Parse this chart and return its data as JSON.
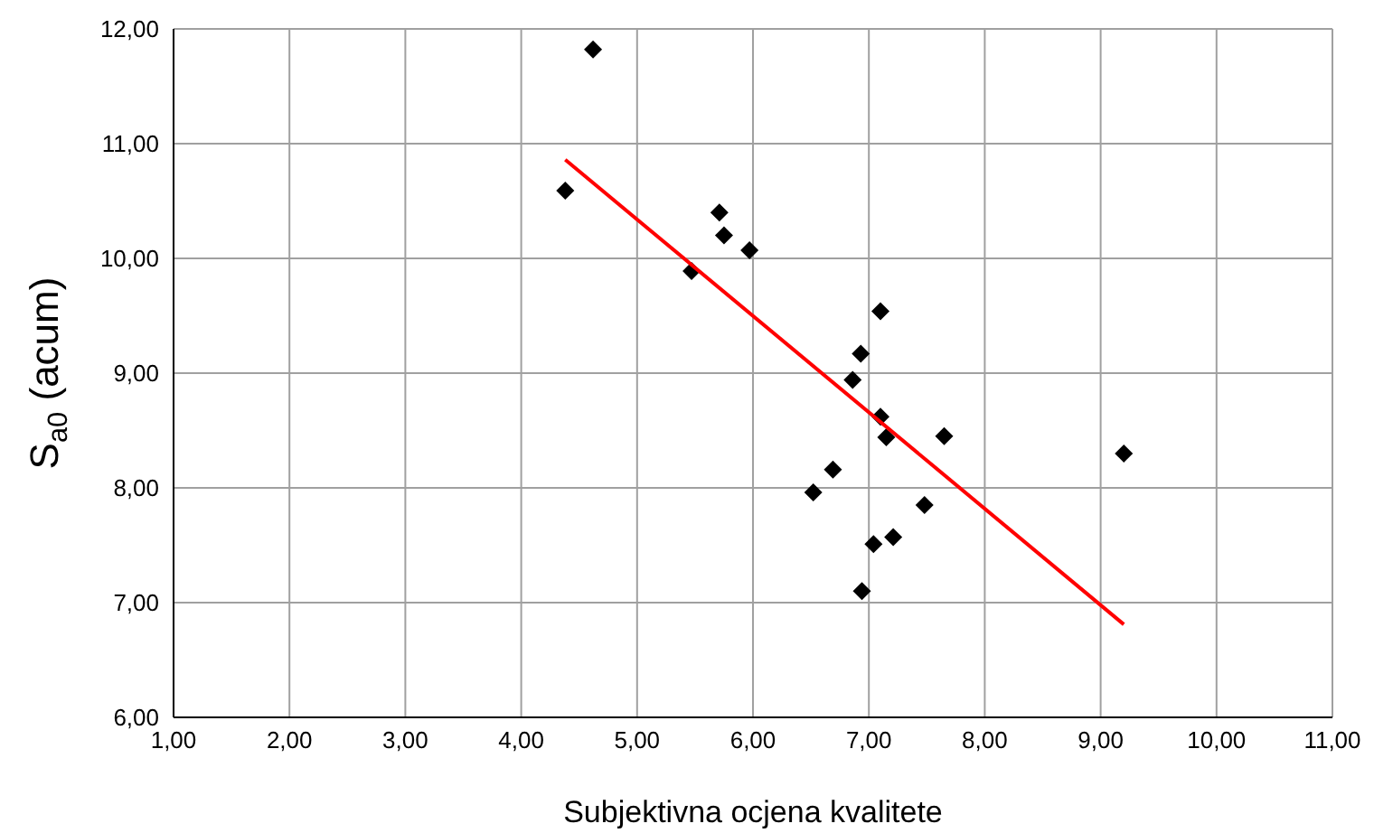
{
  "chart_data": {
    "type": "scatter",
    "xlabel": "Subjektivna ocjena kvalitete",
    "ylabel": "S$_{a0}$ (acum)",
    "xlim": [
      1,
      11
    ],
    "ylim": [
      6,
      12
    ],
    "xticks": [
      {
        "value": 1,
        "label": "1,00"
      },
      {
        "value": 2,
        "label": "2,00"
      },
      {
        "value": 3,
        "label": "3,00"
      },
      {
        "value": 4,
        "label": "4,00"
      },
      {
        "value": 5,
        "label": "5,00"
      },
      {
        "value": 6,
        "label": "6,00"
      },
      {
        "value": 7,
        "label": "7,00"
      },
      {
        "value": 8,
        "label": "8,00"
      },
      {
        "value": 9,
        "label": "9,00"
      },
      {
        "value": 10,
        "label": "10,00"
      },
      {
        "value": 11,
        "label": "11,00"
      }
    ],
    "yticks": [
      {
        "value": 6,
        "label": "6,00"
      },
      {
        "value": 7,
        "label": "7,00"
      },
      {
        "value": 8,
        "label": "8,00"
      },
      {
        "value": 9,
        "label": "9,00"
      },
      {
        "value": 10,
        "label": "10,00"
      },
      {
        "value": 11,
        "label": "11,00"
      },
      {
        "value": 12,
        "label": "12,00"
      }
    ],
    "grid": true,
    "series": [
      {
        "color": "#000000",
        "marker": "diamond",
        "x": [
          4.62,
          4.38,
          5.71,
          5.75,
          5.97,
          5.47,
          7.1,
          6.93,
          6.86,
          7.1,
          7.15,
          7.65,
          9.2,
          6.69,
          6.52,
          7.48,
          7.21,
          7.04,
          6.94
        ],
        "values": [
          11.82,
          10.59,
          10.4,
          10.2,
          10.07,
          9.89,
          9.54,
          9.17,
          8.94,
          8.62,
          8.44,
          8.45,
          8.3,
          8.16,
          7.96,
          7.85,
          7.57,
          7.51,
          7.1
        ]
      },
      {
        "type": "line",
        "color": "#ff0000",
        "marker": "none",
        "line_style": "solid",
        "x": [
          4.38,
          9.2
        ],
        "values": [
          10.86,
          6.81
        ]
      }
    ]
  }
}
